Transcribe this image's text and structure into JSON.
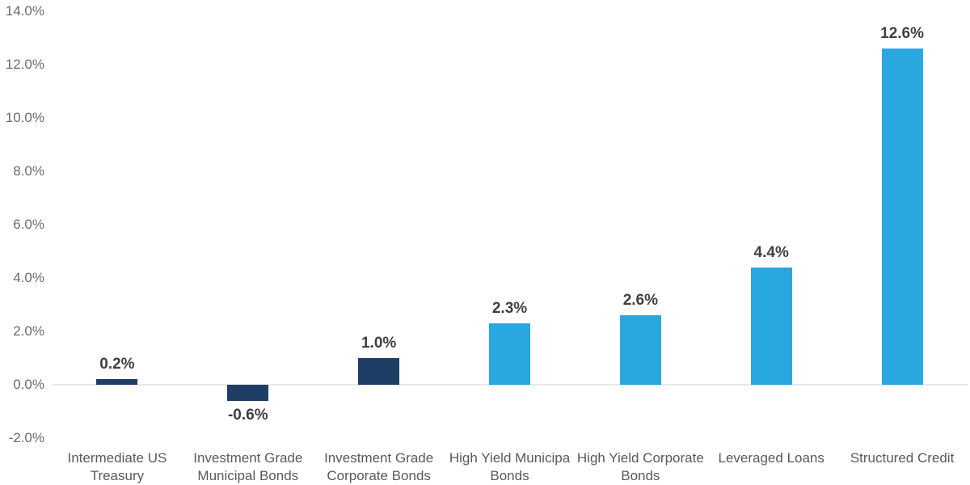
{
  "chart_data": {
    "type": "bar",
    "title": "",
    "xlabel": "",
    "ylabel": "",
    "categories": [
      "Intermediate US Treasury",
      "Investment Grade Municipal Bonds",
      "Investment Grade Corporate Bonds",
      "High Yield Municipal Bonds",
      "High Yield Corporate Bonds",
      "Leveraged Loans",
      "Structured Credit"
    ],
    "values": [
      0.2,
      -0.6,
      1.0,
      2.3,
      2.6,
      4.4,
      12.6
    ],
    "data_labels": [
      "0.2%",
      "-0.6%",
      "1.0%",
      "2.3%",
      "2.6%",
      "4.4%",
      "12.6%"
    ],
    "bar_colors": [
      "#1F3E66",
      "#1F3E66",
      "#1F3E66",
      "#29A8E0",
      "#29A8E0",
      "#29A8E0",
      "#29A8E0"
    ],
    "ylim": [
      -2,
      14
    ],
    "yticks": [
      {
        "value": 14,
        "label": "14.0%"
      },
      {
        "value": 12,
        "label": "12.0%"
      },
      {
        "value": 10,
        "label": "10.0%"
      },
      {
        "value": 8,
        "label": "8.0%"
      },
      {
        "value": 6,
        "label": "6.0%"
      },
      {
        "value": 4,
        "label": "4.0%"
      },
      {
        "value": 2,
        "label": "2.0%"
      },
      {
        "value": 0,
        "label": "0.0%"
      },
      {
        "value": -2,
        "label": "-2.0%"
      }
    ],
    "grid": "zero-baseline-only",
    "legend_position": "none"
  },
  "xaxis_display_labels": [
    {
      "lines": [
        "Intermediate US",
        "Treasury"
      ]
    },
    {
      "lines": [
        "Investment Grade",
        "Municipal Bonds"
      ]
    },
    {
      "lines": [
        "Investment Grade",
        "Corporate Bonds"
      ]
    },
    {
      "lines": [
        "High Yield Municipa",
        "Bonds"
      ]
    },
    {
      "lines": [
        "High Yield Corporate",
        "Bonds"
      ]
    },
    {
      "lines": [
        "Leveraged Loans"
      ]
    },
    {
      "lines": [
        "Structured Credit"
      ]
    }
  ],
  "colors": {
    "dark_blue": "#1F3E66",
    "light_blue": "#29A8E0",
    "zero_line": "#E9E9E9",
    "ytick_text": "#6B6B6B",
    "xtick_text": "#595959",
    "value_text": "#3F3F3F",
    "background": "#FFFFFF"
  }
}
